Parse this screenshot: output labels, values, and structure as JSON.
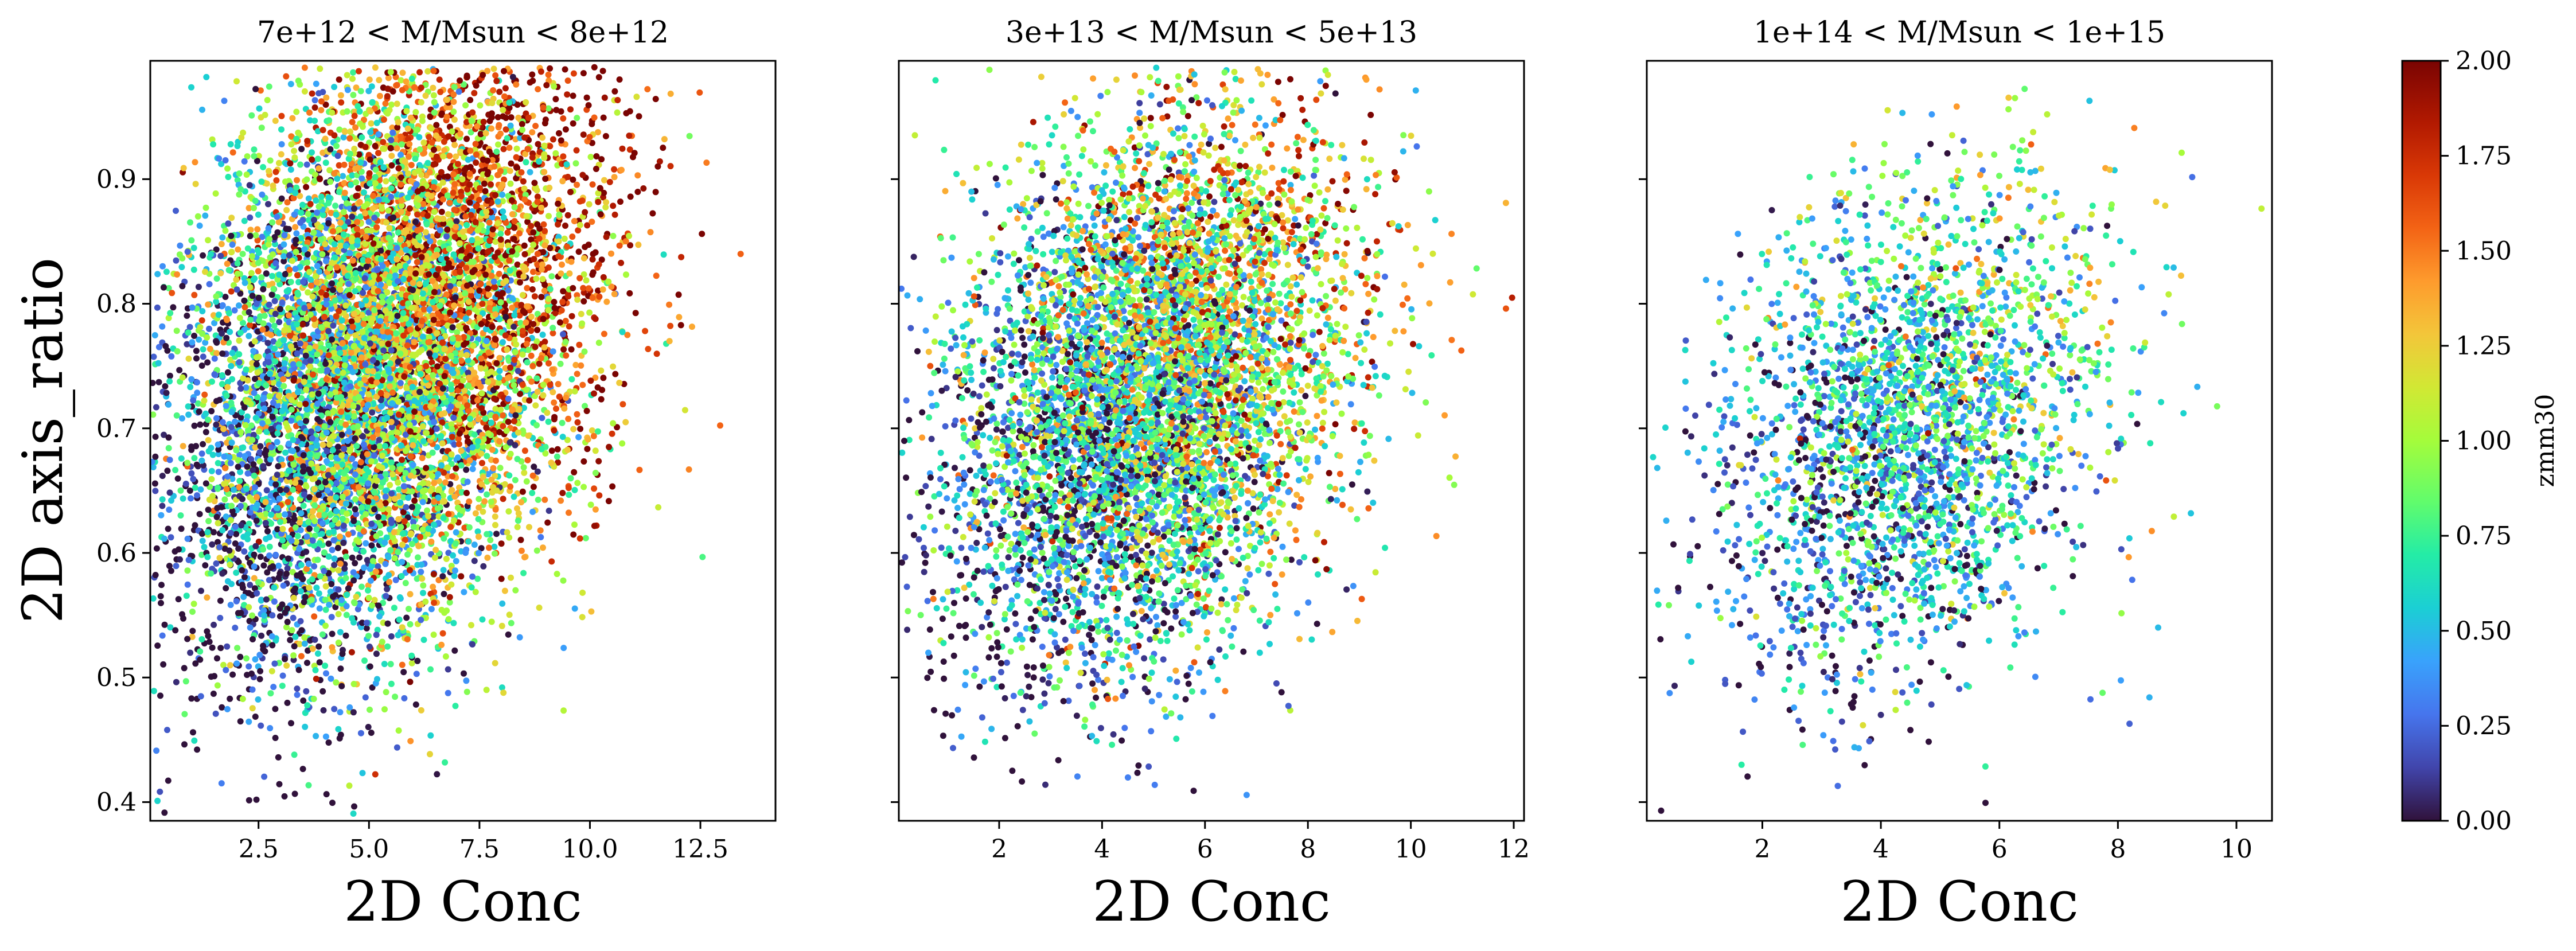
{
  "chart_data": {
    "type": "scatter",
    "colormap": "turbo",
    "shared_y": true,
    "ylabel": "2D axis_ratio",
    "ylim": [
      0.385,
      0.995
    ],
    "yticks": [
      0.4,
      0.5,
      0.6,
      0.7,
      0.8,
      0.9
    ],
    "colorbar": {
      "label": "zmm30",
      "range": [
        0.0,
        2.0
      ],
      "ticks": [
        "0.00",
        "0.25",
        "0.50",
        "0.75",
        "1.00",
        "1.25",
        "1.50",
        "1.75",
        "2.00"
      ]
    },
    "panels": [
      {
        "title": "7e+12 < M/Msun < 8e+12",
        "xlabel": "2D Conc",
        "xlim": [
          0.05,
          14.2
        ],
        "xticks": [
          "2.5",
          "5.0",
          "7.5",
          "10.0",
          "12.5"
        ],
        "point_count": 9000,
        "distribution": {
          "x_center": 5.3,
          "x_sd": 2.3,
          "x_min": 0.05,
          "x_max": 14.0,
          "y_center": 0.76,
          "y_sd": 0.12,
          "y_min": 0.39,
          "y_max": 0.99,
          "correlation": 0.35,
          "color_mean": 0.95,
          "color_sd": 0.55,
          "color_trend_x": 0.12,
          "color_trend_y": 1.6
        }
      },
      {
        "title": "3e+13 < M/Msun < 5e+13",
        "xlabel": "2D Conc",
        "xlim": [
          0.05,
          12.2
        ],
        "xticks": [
          "2",
          "4",
          "6",
          "8",
          "10",
          "12"
        ],
        "point_count": 6500,
        "distribution": {
          "x_center": 4.9,
          "x_sd": 1.9,
          "x_min": 0.1,
          "x_max": 12.1,
          "y_center": 0.73,
          "y_sd": 0.11,
          "y_min": 0.4,
          "y_max": 0.99,
          "correlation": 0.3,
          "color_mean": 0.75,
          "color_sd": 0.5,
          "color_trend_x": 0.08,
          "color_trend_y": 1.2
        }
      },
      {
        "title": "1e+14 < M/Msun < 1e+15",
        "xlabel": "2D Conc",
        "xlim": [
          0.05,
          10.6
        ],
        "xticks": [
          "2",
          "4",
          "6",
          "8",
          "10"
        ],
        "point_count": 2800,
        "distribution": {
          "x_center": 4.5,
          "x_sd": 1.6,
          "x_min": 0.1,
          "x_max": 10.5,
          "y_center": 0.7,
          "y_sd": 0.1,
          "y_min": 0.39,
          "y_max": 0.99,
          "correlation": 0.25,
          "color_mean": 0.55,
          "color_sd": 0.38,
          "color_trend_x": 0.05,
          "color_trend_y": 0.9
        }
      }
    ]
  }
}
